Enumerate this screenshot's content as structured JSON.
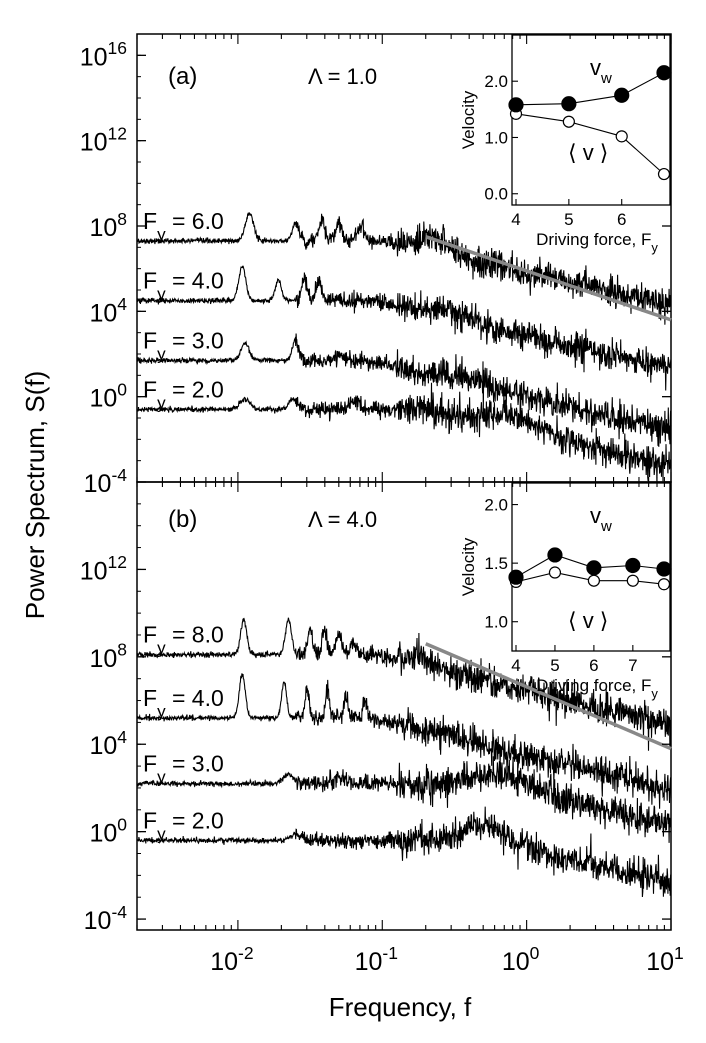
{
  "chart_data": {
    "type": "line",
    "shared": {
      "xlabel": "Frequency, f",
      "ylabel": "Power Spectrum, S(f)",
      "xscale": "log",
      "yscale": "log",
      "xlim": [
        0.002,
        10
      ],
      "x_tick_labels": [
        {
          "base": "10",
          "exp": "-2",
          "value": 0.01
        },
        {
          "base": "10",
          "exp": "-1",
          "value": 0.1
        },
        {
          "base": "10",
          "exp": "0",
          "value": 1
        },
        {
          "base": "10",
          "exp": "1",
          "value": 10
        }
      ]
    },
    "panels": [
      {
        "label": "(a)",
        "annotation": "Λ = 1.0",
        "ylim_log10": [
          -4,
          17
        ],
        "y_tick_labels": [
          {
            "base": "10",
            "exp": "16",
            "value_log10": 16
          },
          {
            "base": "10",
            "exp": "12",
            "value_log10": 12
          },
          {
            "base": "10",
            "exp": "8",
            "value_log10": 8
          },
          {
            "base": "10",
            "exp": "4",
            "value_log10": 4
          },
          {
            "base": "10",
            "exp": "0",
            "value_log10": 0
          },
          {
            "base": "10",
            "exp": "-4",
            "value_log10": -4
          }
        ],
        "series": [
          {
            "name": "F_y = 6.0",
            "label_main": "F",
            "label_sub": "y",
            "label_rest": " = 6.0",
            "offset_log10": 7.3,
            "shape_index": 0
          },
          {
            "name": "F_y = 4.0",
            "label_main": "F",
            "label_sub": "y",
            "label_rest": " = 4.0",
            "offset_log10": 4.3,
            "shape_index": 1
          },
          {
            "name": "F_y = 3.0",
            "label_main": "F",
            "label_sub": "y",
            "label_rest": " = 3.0",
            "offset_log10": 1.6,
            "shape_index": 2
          },
          {
            "name": "F_y = 2.0",
            "label_main": "F",
            "label_sub": "y",
            "label_rest": " = 2.0",
            "offset_log10": -0.6,
            "shape_index": 3
          }
        ],
        "fit_line": {
          "x": [
            0.2,
            10
          ],
          "y_log10": [
            7.5,
            3.6
          ],
          "color": "#888888"
        },
        "inset": {
          "xlabel_main": "Driving force, F",
          "xlabel_sub": "y",
          "ylabel": "Velocity",
          "xlim": [
            4,
            6.8
          ],
          "ylim": [
            -0.2,
            2.75
          ],
          "x_ticks": [
            4,
            5,
            6
          ],
          "y_ticks": [
            "0.0",
            "1.0",
            "2.0"
          ],
          "label_vw_main": "v",
          "label_vw_sub": "w",
          "label_v_avg": "⟨ v ⟩",
          "v_w": {
            "x": [
              4,
              5,
              6,
              6.8
            ],
            "y": [
              1.58,
              1.6,
              1.75,
              2.15
            ]
          },
          "v_avg": {
            "x": [
              4,
              5,
              6,
              6.8
            ],
            "y": [
              1.42,
              1.28,
              1.02,
              0.35
            ]
          }
        }
      },
      {
        "label": "(b)",
        "annotation": "Λ = 4.0",
        "ylim_log10": [
          -4.5,
          16
        ],
        "y_tick_labels": [
          {
            "base": "10",
            "exp": "12",
            "value_log10": 12
          },
          {
            "base": "10",
            "exp": "8",
            "value_log10": 8
          },
          {
            "base": "10",
            "exp": "4",
            "value_log10": 4
          },
          {
            "base": "10",
            "exp": "0",
            "value_log10": 0
          },
          {
            "base": "10",
            "exp": "-4",
            "value_log10": -4
          }
        ],
        "series": [
          {
            "name": "F_y = 8.0",
            "label_main": "F",
            "label_sub": "y",
            "label_rest": " = 8.0",
            "offset_log10": 7.8,
            "shape_index": 4
          },
          {
            "name": "F_y = 4.0",
            "label_main": "F",
            "label_sub": "y",
            "label_rest": " = 4.0",
            "offset_log10": 5.2,
            "shape_index": 5
          },
          {
            "name": "F_y = 3.0",
            "label_main": "F",
            "label_sub": "y",
            "label_rest": " = 3.0",
            "offset_log10": 2.2,
            "shape_index": 6
          },
          {
            "name": "F_y = 2.0",
            "label_main": "F",
            "label_sub": "y",
            "label_rest": " = 2.0",
            "offset_log10": -0.4,
            "shape_index": 7
          }
        ],
        "fit_line": {
          "x": [
            0.2,
            10
          ],
          "y_log10": [
            8.6,
            3.8
          ],
          "color": "#888888"
        },
        "inset": {
          "xlabel_main": "Driving force, F",
          "xlabel_sub": "y",
          "ylabel": "Velocity",
          "xlim": [
            4,
            7.8
          ],
          "ylim": [
            0.75,
            2.15
          ],
          "x_ticks": [
            4,
            5,
            6,
            7
          ],
          "y_ticks": [
            "1.0",
            "1.5",
            "2.0"
          ],
          "label_vw_main": "v",
          "label_vw_sub": "w",
          "label_v_avg": "⟨ v ⟩",
          "v_w": {
            "x": [
              4,
              5,
              6,
              7,
              7.8
            ],
            "y": [
              1.38,
              1.57,
              1.46,
              1.48,
              1.45
            ]
          },
          "v_avg": {
            "x": [
              4,
              5,
              6,
              7,
              7.8
            ],
            "y": [
              1.34,
              1.42,
              1.35,
              1.35,
              1.32
            ]
          }
        }
      }
    ],
    "colors": {
      "trace": "#000000",
      "fit": "#888888",
      "axis": "#000000"
    }
  }
}
